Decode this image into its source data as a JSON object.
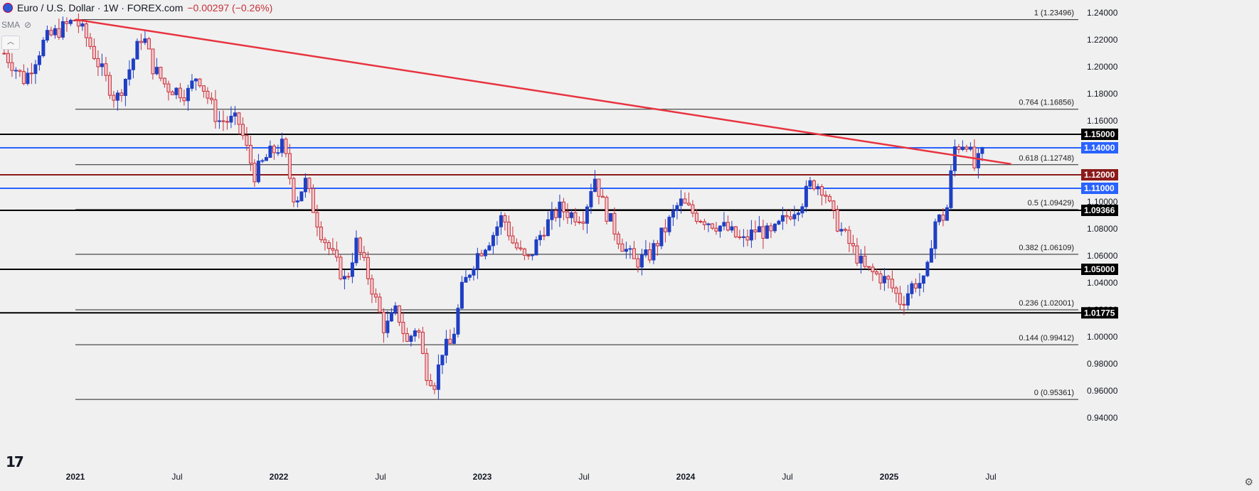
{
  "header": {
    "title": "Euro / U.S. Dollar · 1W · FOREX.com",
    "change": "−0.00297 (−0.26%)",
    "indicator": "SMA",
    "collapse_icon": "chevron-up-icon",
    "logo_icon": "tradingview-logo-icon",
    "settings_icon": "gear-icon",
    "eye_icon": "eye-off-icon"
  },
  "colors": {
    "background": "#f0f0f0",
    "up": "#1f3fc4",
    "down": "#c8303a",
    "down_fill": "#f3c9cd",
    "trendline": "#e8333f",
    "blue_level": "#2962ff",
    "maroon_level": "#8b1a1a",
    "black_level": "#000000"
  },
  "chart_data": {
    "type": "candlestick",
    "title": "Euro / U.S. Dollar · 1W · FOREX.com",
    "ylim": [
      0.94,
      1.245
    ],
    "y_ticks": [
      "1.24000",
      "1.22000",
      "1.20000",
      "1.18000",
      "1.16000",
      "1.14000",
      "1.12000",
      "1.10000",
      "1.08000",
      "1.06000",
      "1.04000",
      "1.02000",
      "1.00000",
      "0.98000",
      "0.96000",
      "0.94000"
    ],
    "x_ticks": [
      {
        "label": "2021",
        "t": 0.0
      },
      {
        "label": "Jul",
        "t": 0.5
      },
      {
        "label": "2022",
        "t": 1.0
      },
      {
        "label": "Jul",
        "t": 1.5
      },
      {
        "label": "2023",
        "t": 2.0
      },
      {
        "label": "Jul",
        "t": 2.5
      },
      {
        "label": "2024",
        "t": 3.0
      },
      {
        "label": "Jul",
        "t": 3.5
      },
      {
        "label": "2025",
        "t": 4.0
      },
      {
        "label": "Jul",
        "t": 4.5
      }
    ],
    "key_points": [
      [
        -0.35,
        1.21
      ],
      [
        -0.25,
        1.19
      ],
      [
        -0.15,
        1.22
      ],
      [
        -0.05,
        1.23
      ],
      [
        0.0,
        1.235
      ],
      [
        0.06,
        1.22
      ],
      [
        0.12,
        1.2
      ],
      [
        0.2,
        1.175
      ],
      [
        0.27,
        1.2
      ],
      [
        0.33,
        1.225
      ],
      [
        0.38,
        1.2
      ],
      [
        0.45,
        1.185
      ],
      [
        0.55,
        1.18
      ],
      [
        0.6,
        1.195
      ],
      [
        0.7,
        1.16
      ],
      [
        0.8,
        1.16
      ],
      [
        0.88,
        1.12
      ],
      [
        0.95,
        1.135
      ],
      [
        1.02,
        1.142
      ],
      [
        1.08,
        1.1
      ],
      [
        1.13,
        1.115
      ],
      [
        1.2,
        1.08
      ],
      [
        1.28,
        1.055
      ],
      [
        1.33,
        1.04
      ],
      [
        1.38,
        1.07
      ],
      [
        1.45,
        1.04
      ],
      [
        1.52,
        1.005
      ],
      [
        1.58,
        1.02
      ],
      [
        1.63,
        0.995
      ],
      [
        1.68,
        1.01
      ],
      [
        1.72,
        0.975
      ],
      [
        1.77,
        0.965
      ],
      [
        1.8,
        0.99
      ],
      [
        1.85,
        0.995
      ],
      [
        1.9,
        1.035
      ],
      [
        1.97,
        1.06
      ],
      [
        2.05,
        1.075
      ],
      [
        2.1,
        1.09
      ],
      [
        2.15,
        1.07
      ],
      [
        2.22,
        1.055
      ],
      [
        2.3,
        1.08
      ],
      [
        2.38,
        1.095
      ],
      [
        2.45,
        1.09
      ],
      [
        2.5,
        1.09
      ],
      [
        2.55,
        1.12
      ],
      [
        2.6,
        1.095
      ],
      [
        2.68,
        1.07
      ],
      [
        2.75,
        1.055
      ],
      [
        2.82,
        1.06
      ],
      [
        2.9,
        1.08
      ],
      [
        2.97,
        1.1
      ],
      [
        3.05,
        1.09
      ],
      [
        3.12,
        1.085
      ],
      [
        3.2,
        1.08
      ],
      [
        3.28,
        1.07
      ],
      [
        3.35,
        1.08
      ],
      [
        3.42,
        1.075
      ],
      [
        3.5,
        1.09
      ],
      [
        3.57,
        1.1
      ],
      [
        3.62,
        1.115
      ],
      [
        3.68,
        1.11
      ],
      [
        3.72,
        1.09
      ],
      [
        3.8,
        1.07
      ],
      [
        3.88,
        1.05
      ],
      [
        3.95,
        1.045
      ],
      [
        4.0,
        1.04
      ],
      [
        4.06,
        1.025
      ],
      [
        4.12,
        1.04
      ],
      [
        4.18,
        1.04
      ],
      [
        4.22,
        1.085
      ],
      [
        4.28,
        1.09
      ],
      [
        4.32,
        1.14
      ],
      [
        4.38,
        1.145
      ],
      [
        4.42,
        1.125
      ],
      [
        4.45,
        1.133
      ],
      [
        4.47,
        1.138
      ]
    ],
    "trendline": {
      "from": [
        0.0,
        1.235
      ],
      "to": [
        4.6,
        1.128
      ]
    },
    "fib_levels": [
      {
        "label": "1 (1.23496)",
        "value": 1.23496,
        "x_start": 0.0
      },
      {
        "label": "0.764 (1.16856)",
        "value": 1.16856,
        "x_start": 0.0
      },
      {
        "label": "0.618 (1.12748)",
        "value": 1.12748,
        "x_start": 0.0
      },
      {
        "label": "0.5 (1.09429)",
        "value": 1.09429,
        "x_start": 0.0
      },
      {
        "label": "0.382 (1.06109)",
        "value": 1.06109,
        "x_start": 0.0
      },
      {
        "label": "0.236 (1.02001)",
        "value": 1.02001,
        "x_start": 0.0
      },
      {
        "label": "0.144 (0.99412)",
        "value": 0.99412,
        "x_start": 0.0
      },
      {
        "label": "0 (0.95361)",
        "value": 0.95361,
        "x_start": 0.0
      }
    ],
    "horizontal_lines": [
      {
        "label": "1.15000",
        "value": 1.15,
        "kind": "black"
      },
      {
        "label": "1.14000",
        "value": 1.14,
        "kind": "blue"
      },
      {
        "label": "1.12000",
        "value": 1.12,
        "kind": "maroon"
      },
      {
        "label": "1.11000",
        "value": 1.11,
        "kind": "blue"
      },
      {
        "label": "1.09366",
        "value": 1.09366,
        "kind": "black"
      },
      {
        "label": "1.05000",
        "value": 1.05,
        "kind": "black"
      },
      {
        "label": "1.01775",
        "value": 1.01775,
        "kind": "black"
      }
    ]
  }
}
